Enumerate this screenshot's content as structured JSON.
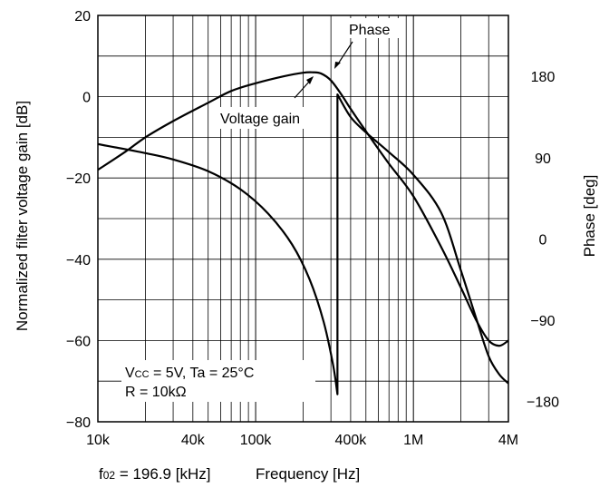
{
  "chart_data": {
    "type": "line",
    "xscale": "log",
    "xlim": [
      10000,
      4000000
    ],
    "ylim_left": [
      -80,
      20
    ],
    "ylim_right": [
      -202.5,
      247.5
    ],
    "grid": true,
    "xlabel": "Frequency [Hz]",
    "xlabel_note": "f02 = 196.9 [kHz]",
    "ylabel_left": "Normalized filter voltage gain [dB]",
    "ylabel_right": "Phase [deg]",
    "x_ticks": [
      {
        "value": 10000,
        "label": "10k"
      },
      {
        "value": 40000,
        "label": "40k"
      },
      {
        "value": 100000,
        "label": "100k"
      },
      {
        "value": 400000,
        "label": "400k"
      },
      {
        "value": 1000000,
        "label": "1M"
      },
      {
        "value": 4000000,
        "label": "4M"
      }
    ],
    "y_ticks_left": [
      20,
      0,
      -20,
      -40,
      -60,
      -80
    ],
    "y_ticks_right": [
      180,
      90,
      0,
      -90,
      -180
    ],
    "y_tick_labels_left": [
      "20",
      "0",
      "−20",
      "−40",
      "−60",
      "−80"
    ],
    "y_tick_labels_right": [
      "180",
      "90",
      "0",
      "−90",
      "−180"
    ],
    "series": [
      {
        "name": "Voltage gain",
        "axis": "left",
        "x": [
          10000,
          15000,
          20000,
          30000,
          50000,
          70000,
          100000,
          150000,
          200000,
          230000,
          260000,
          300000,
          350000,
          400000,
          500000,
          700000,
          1000000,
          1500000,
          2000000,
          2500000,
          3000000,
          3500000,
          4000000
        ],
        "y": [
          -18,
          -13.5,
          -10,
          -6,
          -1.5,
          1.4,
          3.3,
          5,
          5.9,
          6,
          5.7,
          4,
          0.5,
          -3,
          -8.5,
          -16.5,
          -24.5,
          -37,
          -47,
          -55,
          -60,
          -61.3,
          -60
        ]
      },
      {
        "name": "Phase",
        "axis": "right",
        "x": [
          10000,
          20000,
          30000,
          50000,
          80000,
          120000,
          170000,
          220000,
          270000,
          310000,
          330000,
          330001,
          400000,
          500000,
          700000,
          1000000,
          1500000,
          2000000,
          2500000,
          3000000,
          3500000,
          4000000
        ],
        "y": [
          105,
          95,
          88,
          75,
          55,
          28,
          -6,
          -45,
          -92,
          -140,
          -172,
          160,
          135,
          118,
          96,
          71,
          29,
          -35,
          -88,
          -130,
          -150,
          -160
        ]
      }
    ],
    "annotations": [
      {
        "text": "Phase",
        "target": "Phase"
      },
      {
        "text": "Voltage gain",
        "target": "Voltage gain"
      }
    ],
    "conditions": [
      "Vcc = 5V, Ta = 25°C",
      "R = 10kΩ"
    ]
  }
}
